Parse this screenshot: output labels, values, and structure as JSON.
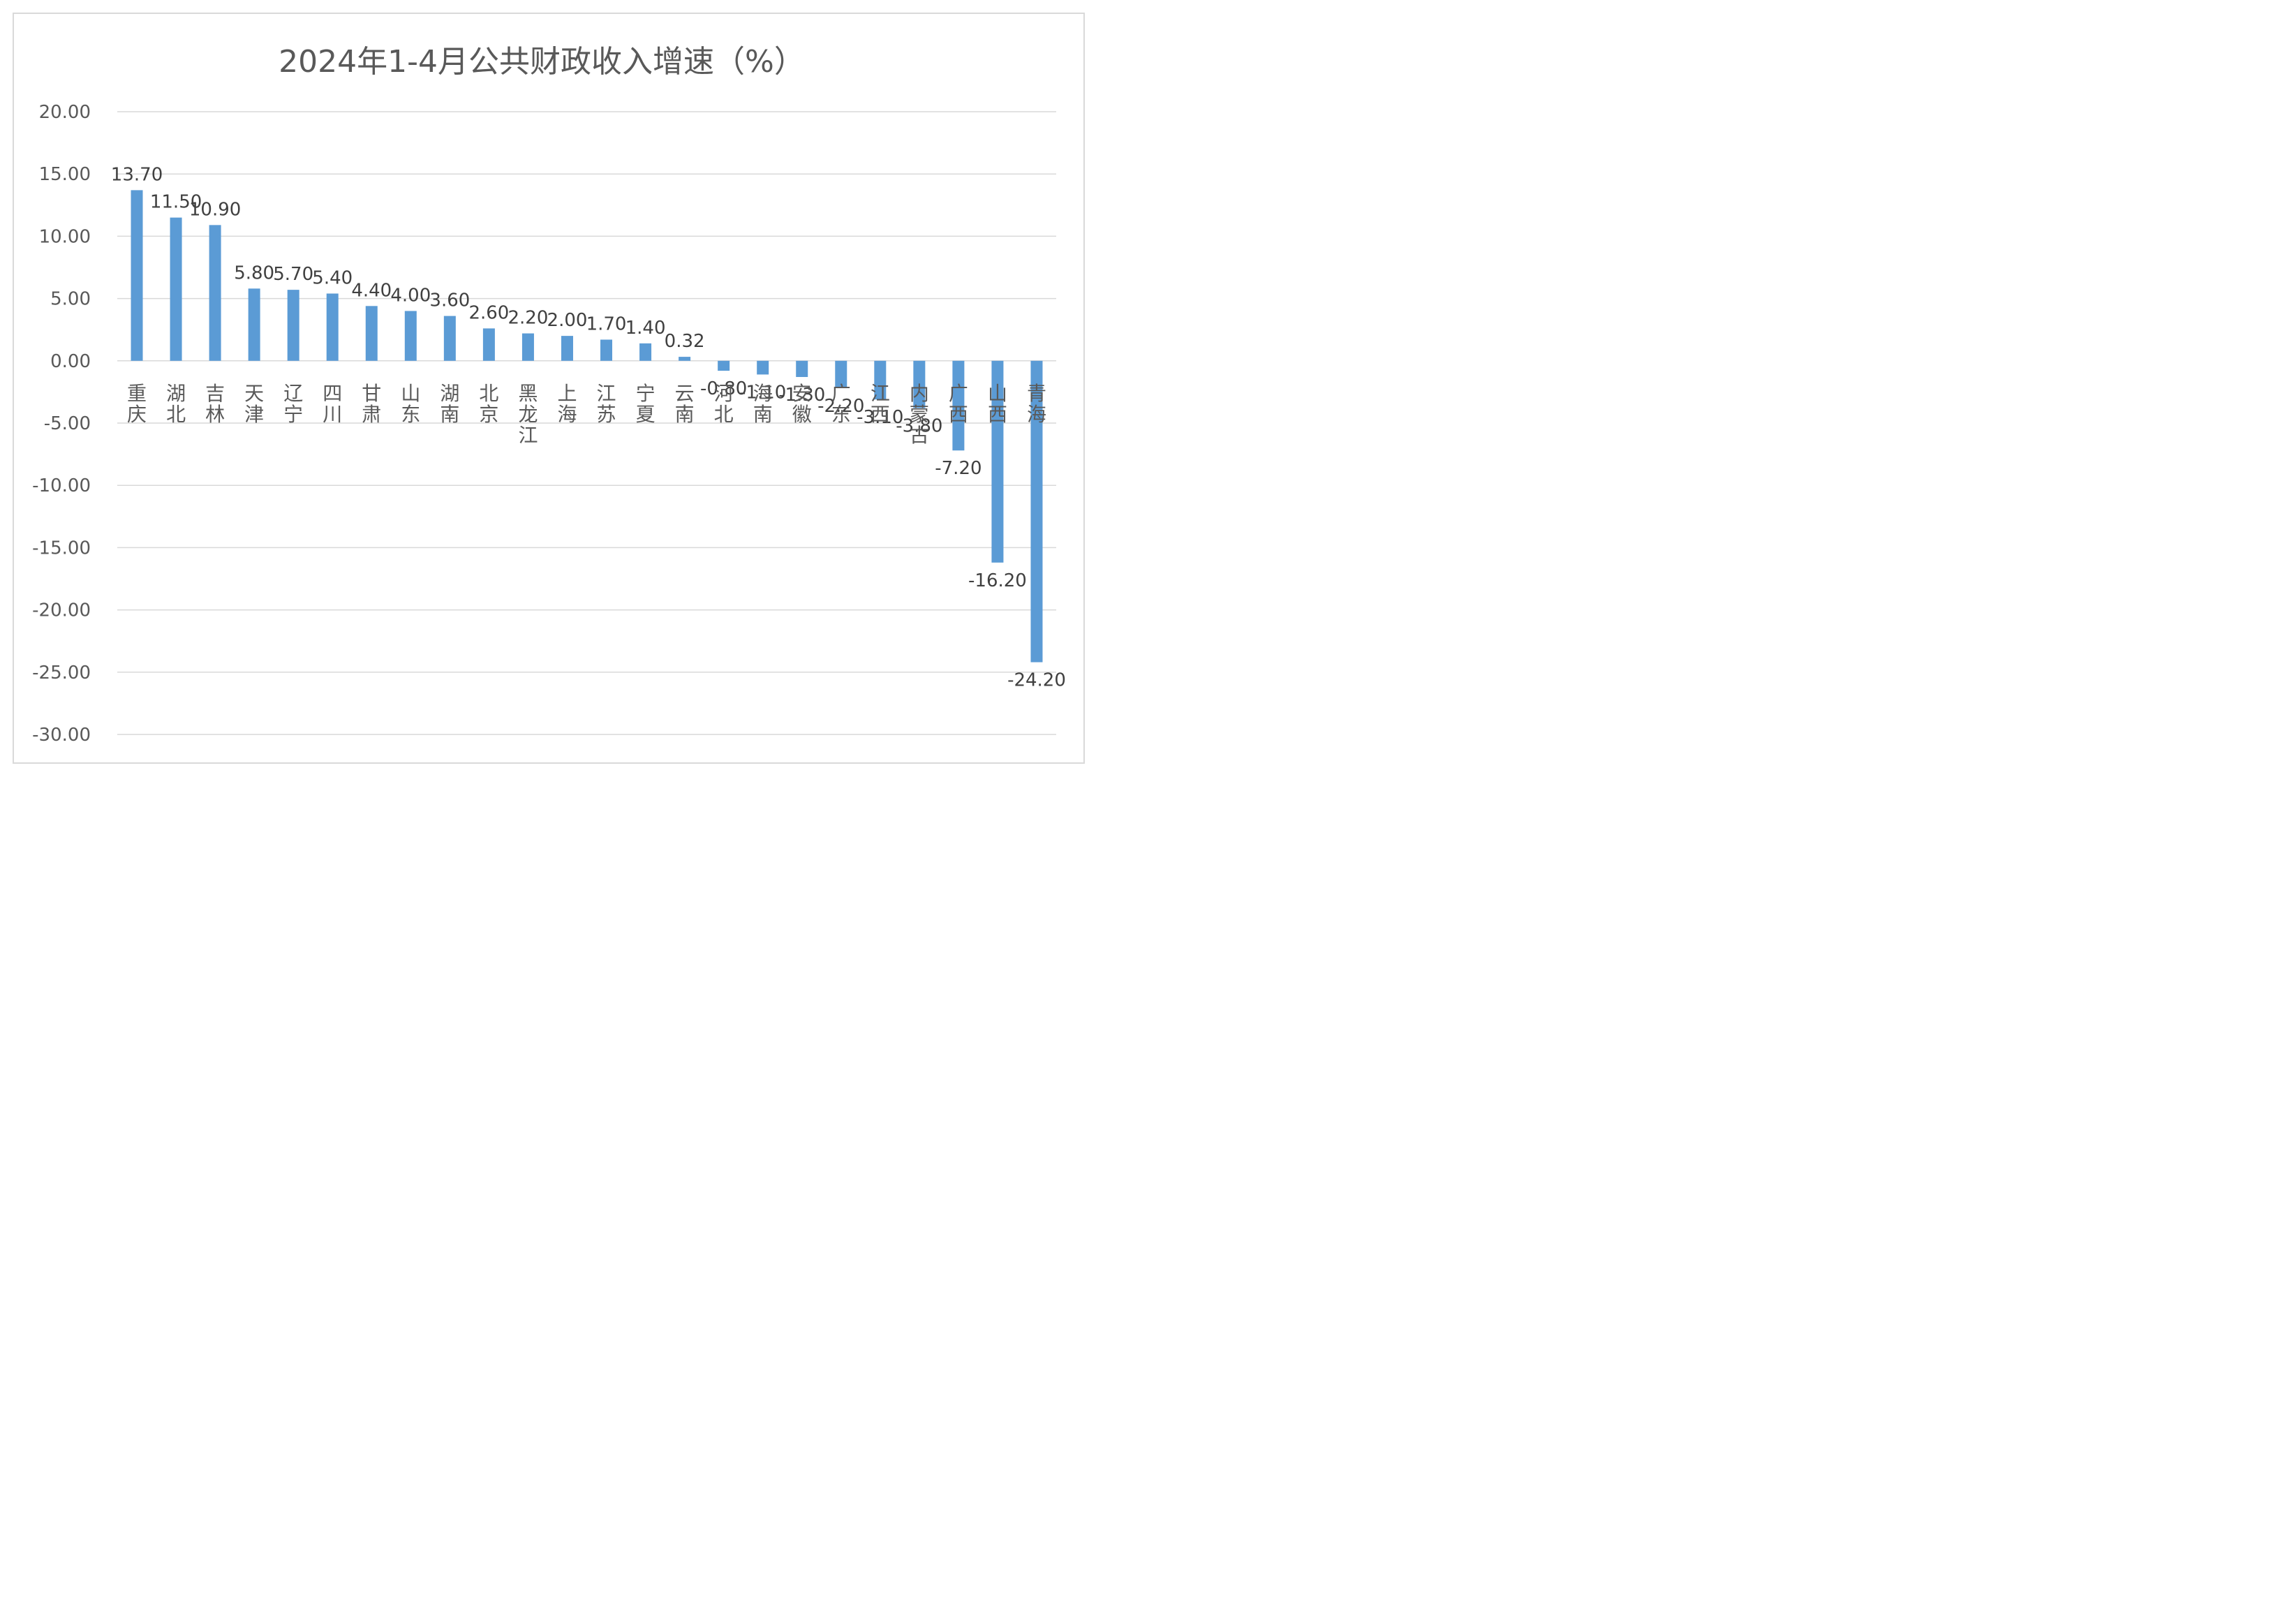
{
  "chart_data": {
    "type": "bar",
    "title": "2024年1-4月公共财政收入增速（%）",
    "categories": [
      "重庆",
      "湖北",
      "吉林",
      "天津",
      "辽宁",
      "四川",
      "甘肃",
      "山东",
      "湖南",
      "北京",
      "黑龙江",
      "上海",
      "江苏",
      "宁夏",
      "云南",
      "河北",
      "海南",
      "安徽",
      "广东",
      "江西",
      "内蒙古",
      "广西",
      "山西",
      "青海"
    ],
    "values": [
      13.7,
      11.5,
      10.9,
      5.8,
      5.7,
      5.4,
      4.4,
      4.0,
      3.6,
      2.6,
      2.2,
      2.0,
      1.7,
      1.4,
      0.32,
      -0.8,
      -1.1,
      -1.3,
      -2.2,
      -3.1,
      -3.8,
      -7.2,
      -16.2,
      -24.2
    ],
    "value_labels": [
      "13.70",
      "11.50",
      "10.90",
      "5.80",
      "5.70",
      "5.40",
      "4.40",
      "4.00",
      "3.60",
      "2.60",
      "2.20",
      "2.00",
      "1.70",
      "1.40",
      "0.32",
      "-0.80",
      "-1.10",
      "-1.30",
      "-2.20",
      "-3.10",
      "-3.80",
      "-7.20",
      "-16.20",
      "-24.20"
    ],
    "ylim": [
      -30,
      20
    ],
    "yticks": [
      20,
      15,
      10,
      5,
      0,
      -5,
      -10,
      -15,
      -20,
      -25,
      -30
    ],
    "ytick_labels": [
      "20.00",
      "15.00",
      "10.00",
      "5.00",
      "0.00",
      "-5.00",
      "-10.00",
      "-15.00",
      "-20.00",
      "-25.00",
      "-30.00"
    ],
    "xlabel": "",
    "ylabel": "",
    "grid": true,
    "legend": "none",
    "bar_color": "#5b9bd5",
    "grid_color": "#d9d9d9",
    "text_color": "#595959"
  }
}
